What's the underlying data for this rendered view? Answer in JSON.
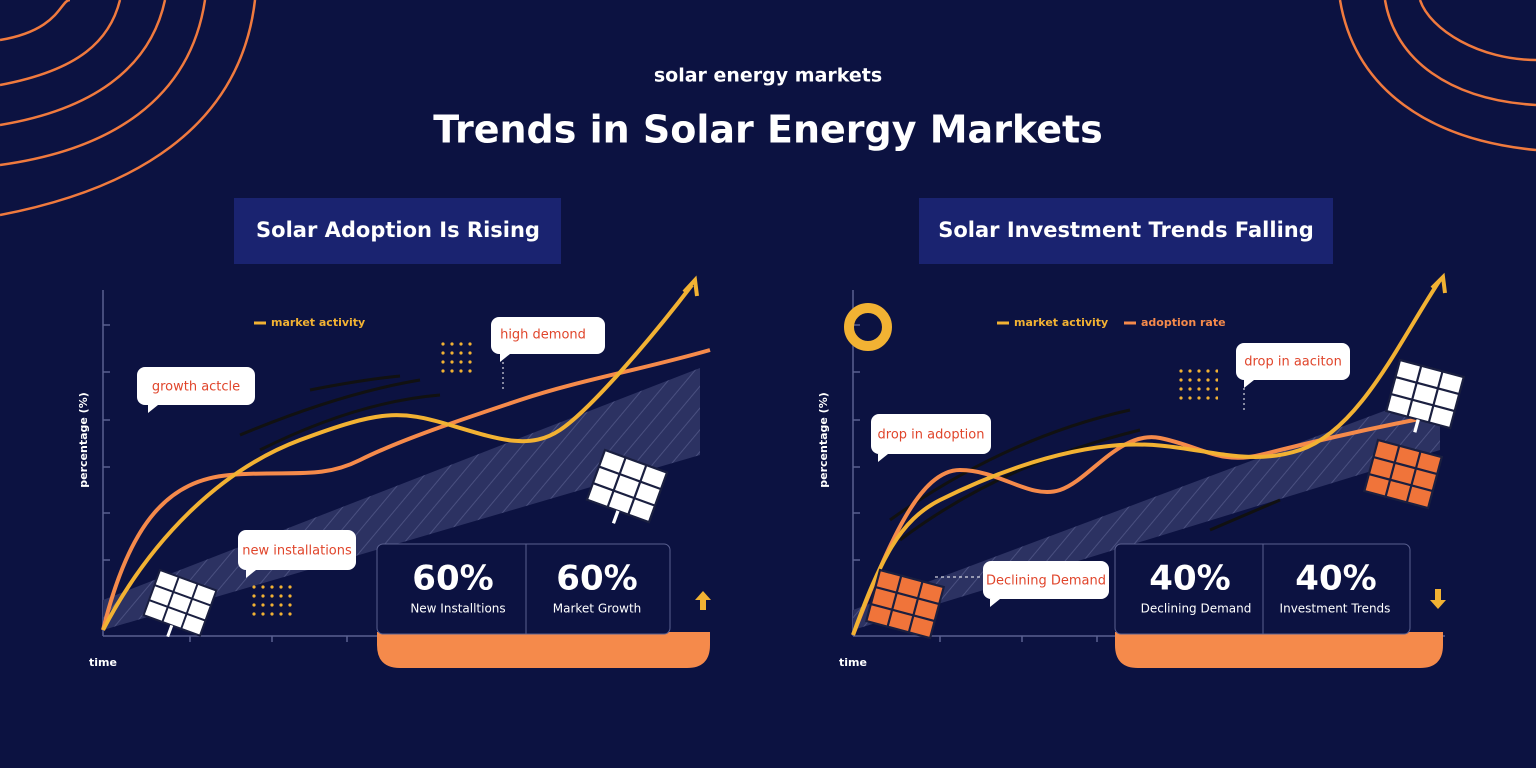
{
  "header": {
    "kicker": "solar energy markets",
    "title": "Trends in Solar Energy Markets"
  },
  "panels": [
    {
      "heading": "Solar Adoption Is Rising",
      "legend": [
        "market activity"
      ],
      "y_label": "percentage (%)",
      "x_label": "time",
      "callouts": [
        "growth actcle",
        "high demond",
        "new installations"
      ],
      "stats": [
        {
          "value": "60%",
          "label": "New Installtions"
        },
        {
          "value": "60%",
          "label": "Market Growth"
        }
      ]
    },
    {
      "heading": "Solar Investment Trends Falling",
      "legend": [
        "market activity",
        "adoption rate"
      ],
      "y_label": "percentage (%)",
      "x_label": "time",
      "callouts": [
        "drop in adoption",
        "drop in aaciton",
        "Declining Demand"
      ],
      "stats": [
        {
          "value": "40%",
          "label": "Declining Demand"
        },
        {
          "value": "40%",
          "label": "Investment Trends"
        }
      ]
    }
  ]
}
